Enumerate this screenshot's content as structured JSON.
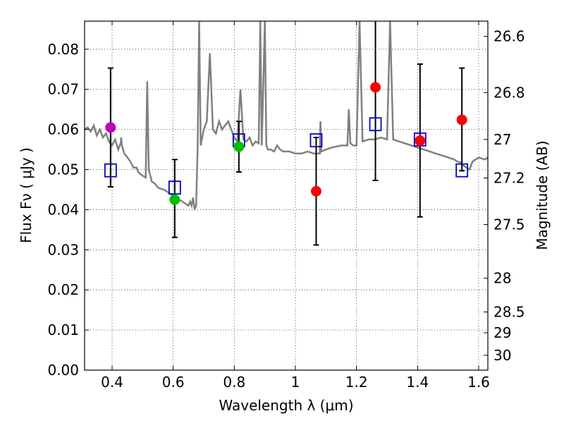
{
  "chart_data": {
    "type": "scatter",
    "title": "",
    "xlabel": "Wavelength  λ (μm)",
    "ylabel": "Flux  Fν  ( μJy )",
    "y2label": "Magnitude (AB)",
    "xlim": [
      0.31,
      1.63
    ],
    "ylim": [
      0.0,
      0.087
    ],
    "grid": true,
    "x_ticks": [
      {
        "value": 0.4,
        "label": "0.4"
      },
      {
        "value": 0.6,
        "label": "0.6"
      },
      {
        "value": 0.8,
        "label": "0.8"
      },
      {
        "value": 1.0,
        "label": "1"
      },
      {
        "value": 1.2,
        "label": "1.2"
      },
      {
        "value": 1.4,
        "label": "1.4"
      },
      {
        "value": 1.6,
        "label": "1.6"
      }
    ],
    "y_ticks": [
      {
        "value": 0.0,
        "label": "0.00"
      },
      {
        "value": 0.01,
        "label": "0.01"
      },
      {
        "value": 0.02,
        "label": "0.02"
      },
      {
        "value": 0.03,
        "label": "0.03"
      },
      {
        "value": 0.04,
        "label": "0.04"
      },
      {
        "value": 0.05,
        "label": "0.05"
      },
      {
        "value": 0.06,
        "label": "0.06"
      },
      {
        "value": 0.07,
        "label": "0.07"
      },
      {
        "value": 0.08,
        "label": "0.08"
      }
    ],
    "y2_ticks": [
      {
        "flux": 0.0832,
        "label": "26.6"
      },
      {
        "flux": 0.0692,
        "label": "26.8"
      },
      {
        "flux": 0.0575,
        "label": "27"
      },
      {
        "flux": 0.0479,
        "label": "27.2"
      },
      {
        "flux": 0.0363,
        "label": "27.5"
      },
      {
        "flux": 0.0229,
        "label": "28"
      },
      {
        "flux": 0.0145,
        "label": "28.5"
      },
      {
        "flux": 0.0093,
        "label": "29"
      },
      {
        "flux": 0.0037,
        "label": "30"
      }
    ],
    "observed": [
      {
        "x": 0.395,
        "y": 0.0605,
        "err_low": 0.0457,
        "err_high": 0.0753,
        "color": "#bf00bf"
      },
      {
        "x": 0.605,
        "y": 0.0425,
        "err_low": 0.0331,
        "err_high": 0.0525,
        "color": "#00bf00"
      },
      {
        "x": 0.815,
        "y": 0.0557,
        "err_low": 0.0494,
        "err_high": 0.062,
        "color": "#00bf00"
      },
      {
        "x": 1.068,
        "y": 0.0446,
        "err_low": 0.0312,
        "err_high": 0.058,
        "color": "#ff0000"
      },
      {
        "x": 1.262,
        "y": 0.0705,
        "err_low": 0.0473,
        "err_high": 0.087,
        "color": "#ff0000"
      },
      {
        "x": 1.408,
        "y": 0.0572,
        "err_low": 0.0382,
        "err_high": 0.0763,
        "color": "#ff0000"
      },
      {
        "x": 1.545,
        "y": 0.0624,
        "err_low": 0.0497,
        "err_high": 0.0753,
        "color": "#ff0000"
      }
    ],
    "model_bandpass": [
      {
        "x": 0.395,
        "y": 0.0498
      },
      {
        "x": 0.605,
        "y": 0.0455
      },
      {
        "x": 0.815,
        "y": 0.0573
      },
      {
        "x": 1.068,
        "y": 0.0573
      },
      {
        "x": 1.262,
        "y": 0.0613
      },
      {
        "x": 1.408,
        "y": 0.0575
      },
      {
        "x": 1.545,
        "y": 0.0498
      }
    ],
    "spectrum": {
      "x": [
        0.31,
        0.32,
        0.33,
        0.34,
        0.35,
        0.36,
        0.37,
        0.38,
        0.39,
        0.4,
        0.41,
        0.42,
        0.428,
        0.43,
        0.432,
        0.44,
        0.45,
        0.46,
        0.47,
        0.48,
        0.485,
        0.49,
        0.5,
        0.51,
        0.515,
        0.52,
        0.53,
        0.54,
        0.55,
        0.56,
        0.57,
        0.58,
        0.59,
        0.6,
        0.61,
        0.62,
        0.63,
        0.64,
        0.65,
        0.655,
        0.66,
        0.665,
        0.67,
        0.675,
        0.68,
        0.685,
        0.69,
        0.7,
        0.71,
        0.72,
        0.73,
        0.74,
        0.75,
        0.76,
        0.77,
        0.78,
        0.79,
        0.8,
        0.81,
        0.82,
        0.83,
        0.84,
        0.85,
        0.86,
        0.87,
        0.88,
        0.885,
        0.89,
        0.9,
        0.905,
        0.91,
        0.92,
        0.93,
        0.94,
        0.95,
        0.96,
        0.98,
        1.0,
        1.02,
        1.04,
        1.06,
        1.08,
        1.082,
        1.085,
        1.1,
        1.12,
        1.15,
        1.17,
        1.175,
        1.18,
        1.19,
        1.2,
        1.21,
        1.22,
        1.24,
        1.26,
        1.28,
        1.3,
        1.31,
        1.32,
        1.34,
        1.36,
        1.38,
        1.4,
        1.42,
        1.44,
        1.46,
        1.48,
        1.5,
        1.52,
        1.53,
        1.54,
        1.55,
        1.56,
        1.57,
        1.58,
        1.6,
        1.62,
        1.63
      ],
      "y": [
        0.06,
        0.0605,
        0.0595,
        0.061,
        0.0585,
        0.06,
        0.058,
        0.059,
        0.057,
        0.056,
        0.0575,
        0.055,
        0.0565,
        0.058,
        0.056,
        0.054,
        0.053,
        0.052,
        0.0505,
        0.0505,
        0.0495,
        0.049,
        0.0485,
        0.048,
        0.072,
        0.05,
        0.047,
        0.0465,
        0.0455,
        0.0452,
        0.045,
        0.0445,
        0.044,
        0.0435,
        0.043,
        0.0425,
        0.042,
        0.0415,
        0.041,
        0.042,
        0.041,
        0.043,
        0.04,
        0.041,
        0.055,
        0.087,
        0.056,
        0.06,
        0.062,
        0.079,
        0.06,
        0.059,
        0.062,
        0.06,
        0.061,
        0.062,
        0.06,
        0.058,
        0.057,
        0.07,
        0.0575,
        0.057,
        0.058,
        0.056,
        0.057,
        0.0565,
        0.087,
        0.056,
        0.087,
        0.056,
        0.055,
        0.055,
        0.0545,
        0.056,
        0.055,
        0.0545,
        0.0545,
        0.054,
        0.054,
        0.0545,
        0.054,
        0.054,
        0.062,
        0.0545,
        0.055,
        0.0555,
        0.056,
        0.056,
        0.065,
        0.0565,
        0.056,
        0.056,
        0.087,
        0.057,
        0.0575,
        0.0575,
        0.058,
        0.0575,
        0.087,
        0.0575,
        0.057,
        0.0565,
        0.056,
        0.0555,
        0.055,
        0.0545,
        0.054,
        0.0535,
        0.053,
        0.0525,
        0.052,
        0.0518,
        0.051,
        0.0505,
        0.05,
        0.052,
        0.053,
        0.0525,
        0.053
      ]
    }
  }
}
